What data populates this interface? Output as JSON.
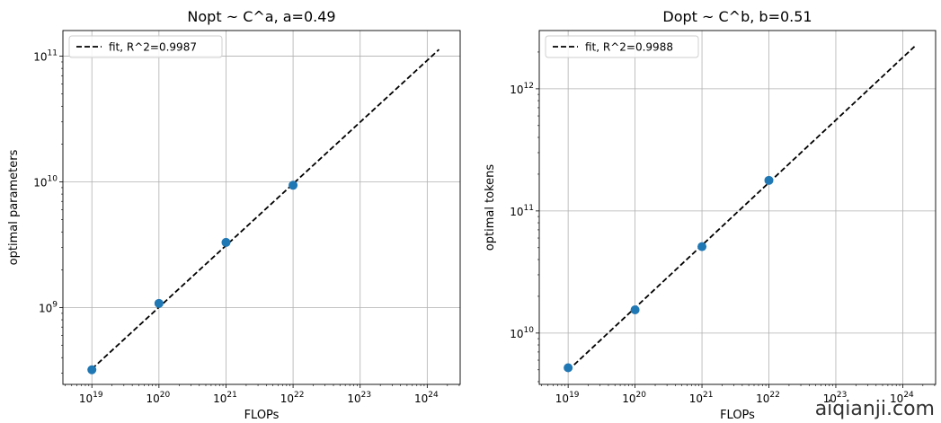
{
  "watermark": "aiqianji.com",
  "chart_data": [
    {
      "type": "scatter",
      "title": "Nopt ~ C^a, a=0.49",
      "xlabel": "FLOPs",
      "ylabel": "optimal parameters",
      "xscale": "log",
      "yscale": "log",
      "grid": true,
      "legend_placement": "top-left",
      "xlim": [
        3.7e+18,
        3.1e+24
      ],
      "ylim": [
        245000000.0,
        160000000000.0
      ],
      "x_ticks": [
        {
          "base": "10",
          "exp": "19",
          "value": 1e+19
        },
        {
          "base": "10",
          "exp": "20",
          "value": 1e+20
        },
        {
          "base": "10",
          "exp": "21",
          "value": 1e+21
        },
        {
          "base": "10",
          "exp": "22",
          "value": 1e+22
        },
        {
          "base": "10",
          "exp": "23",
          "value": 1e+23
        },
        {
          "base": "10",
          "exp": "24",
          "value": 1e+24
        }
      ],
      "y_ticks": [
        {
          "base": "10",
          "exp": "9",
          "value": 1000000000.0
        },
        {
          "base": "10",
          "exp": "10",
          "value": 10000000000.0
        },
        {
          "base": "10",
          "exp": "11",
          "value": 100000000000.0
        }
      ],
      "points": {
        "x": [
          1e+19,
          1e+20,
          1e+21,
          1e+22
        ],
        "y": [
          320000000.0,
          1080000000.0,
          3300000000.0,
          9400000000.0
        ],
        "color": "#1f77b4"
      },
      "fit": {
        "label": "fit, R^2=0.9987",
        "x": [
          1e+19,
          1.5e+24
        ],
        "y": [
          325000000.0,
          113000000000.0
        ],
        "color": "#000000",
        "style": "dashed"
      }
    },
    {
      "type": "scatter",
      "title": "Dopt ~ C^b, b=0.51",
      "xlabel": "FLOPs",
      "ylabel": "optimal tokens",
      "xscale": "log",
      "yscale": "log",
      "grid": true,
      "legend_placement": "top-left",
      "xlim": [
        3.7e+18,
        3.1e+24
      ],
      "ylim": [
        3800000000.0,
        3000000000000.0
      ],
      "x_ticks": [
        {
          "base": "10",
          "exp": "19",
          "value": 1e+19
        },
        {
          "base": "10",
          "exp": "20",
          "value": 1e+20
        },
        {
          "base": "10",
          "exp": "21",
          "value": 1e+21
        },
        {
          "base": "10",
          "exp": "22",
          "value": 1e+22
        },
        {
          "base": "10",
          "exp": "23",
          "value": 1e+23
        },
        {
          "base": "10",
          "exp": "24",
          "value": 1e+24
        }
      ],
      "y_ticks": [
        {
          "base": "10",
          "exp": "10",
          "value": 10000000000.0
        },
        {
          "base": "10",
          "exp": "11",
          "value": 100000000000.0
        },
        {
          "base": "10",
          "exp": "12",
          "value": 1000000000000.0
        }
      ],
      "points": {
        "x": [
          1e+19,
          1e+20,
          1e+21,
          1e+22
        ],
        "y": [
          5200000000.0,
          15500000000.0,
          51000000000.0,
          178000000000.0
        ],
        "color": "#1f77b4"
      },
      "fit": {
        "label": "fit, R^2=0.9988",
        "x": [
          1e+19,
          1.5e+24
        ],
        "y": [
          4950000000.0,
          2220000000000.0
        ],
        "color": "#000000",
        "style": "dashed"
      }
    }
  ]
}
